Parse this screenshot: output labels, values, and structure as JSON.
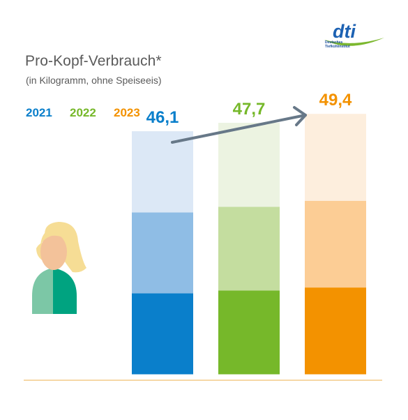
{
  "header": {
    "title": "Pro-Kopf-Verbrauch*",
    "subtitle": "(in Kilogramm, ohne Speiseeis)"
  },
  "logo": {
    "wordmark": "dti",
    "line1": "Deutsches",
    "line2": "Tiefkühlinstitut",
    "colors": {
      "wordmark": "#1d62b3",
      "swoosh": "#7cb82f"
    }
  },
  "person_icon": "woman-avatar-icon",
  "chart_data": {
    "type": "bar",
    "stacked": true,
    "title": "Pro-Kopf-Verbrauch*",
    "subtitle": "(in Kilogramm, ohne Speiseeis)",
    "categories": [
      "2021",
      "2022",
      "2023"
    ],
    "values": [
      46.1,
      47.7,
      49.4
    ],
    "value_labels": [
      "46,1",
      "47,7",
      "49,4"
    ],
    "segments_per_bar": 3,
    "legend": [
      "2021",
      "2022",
      "2023"
    ],
    "legend_position": "top-left",
    "series_colors": {
      "2021": [
        "#0a7fcb",
        "#8fbde5",
        "#dce8f6"
      ],
      "2022": [
        "#76b82a",
        "#c4dd9f",
        "#ecf3e1"
      ],
      "2023": [
        "#f39200",
        "#fccd95",
        "#fdeedd"
      ]
    },
    "ylim": [
      0,
      60
    ],
    "grid": false,
    "trend_arrow": "upward",
    "colors": {
      "axis": "#f0c070",
      "arrow": "#677888"
    }
  }
}
